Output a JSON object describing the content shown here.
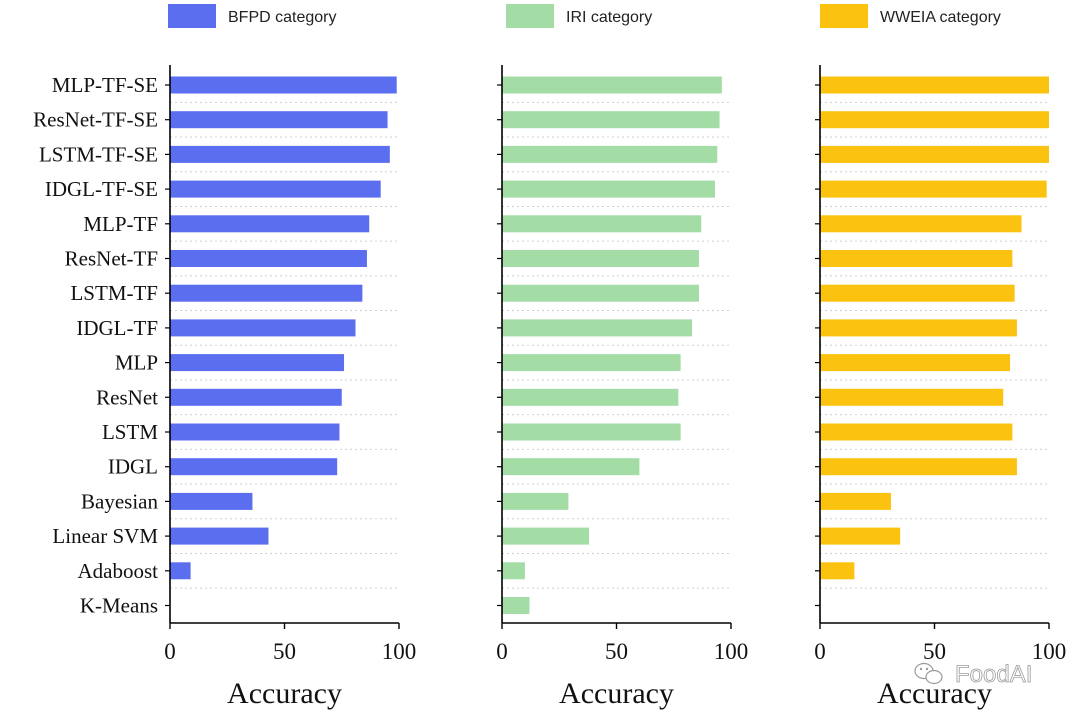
{
  "chart_data": {
    "type": "bar",
    "orientation": "horizontal",
    "categories": [
      "MLP-TF-SE",
      "ResNet-TF-SE",
      "LSTM-TF-SE",
      "IDGL-TF-SE",
      "MLP-TF",
      "ResNet-TF",
      "LSTM-TF",
      "IDGL-TF",
      "MLP",
      "ResNet",
      "LSTM",
      "IDGL",
      "Bayesian",
      "Linear SVM",
      "Adaboost",
      "K-Means"
    ],
    "xlabel": "Accuracy",
    "xlim": [
      0,
      100
    ],
    "xticks": [
      "0",
      "50",
      "100"
    ],
    "grid": "horizontal dashed",
    "legend_position": "top",
    "series": [
      {
        "name": "BFPD category",
        "color": "#5b6ef0",
        "values": [
          99,
          95,
          96,
          92,
          87,
          86,
          84,
          81,
          76,
          75,
          74,
          73,
          36,
          43,
          9,
          0
        ]
      },
      {
        "name": "IRI category",
        "color": "#a3dca5",
        "values": [
          96,
          95,
          94,
          93,
          87,
          86,
          86,
          83,
          78,
          77,
          78,
          60,
          29,
          38,
          10,
          12
        ]
      },
      {
        "name": "WWEIA category",
        "color": "#fbc30f",
        "values": [
          100,
          100,
          100,
          99,
          88,
          84,
          85,
          86,
          83,
          80,
          84,
          86,
          31,
          35,
          15,
          0
        ]
      }
    ]
  },
  "watermark": {
    "text": "FoodAI",
    "icon": "wechat-icon"
  }
}
